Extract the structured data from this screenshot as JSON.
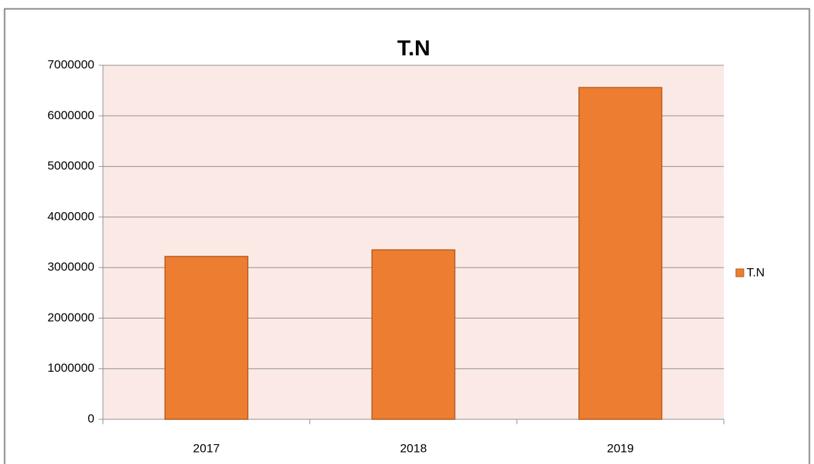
{
  "chart_data": {
    "type": "bar",
    "title": "T.N",
    "categories": [
      "2017",
      "2018",
      "2019"
    ],
    "series": [
      {
        "name": "T.N",
        "color": "#ed7d31",
        "values": [
          3220000,
          3350000,
          6560000
        ]
      }
    ],
    "ylim": [
      0,
      7000000
    ],
    "yticks": [
      0,
      1000000,
      2000000,
      3000000,
      4000000,
      5000000,
      6000000,
      7000000
    ],
    "grid": true,
    "legend": "right"
  }
}
